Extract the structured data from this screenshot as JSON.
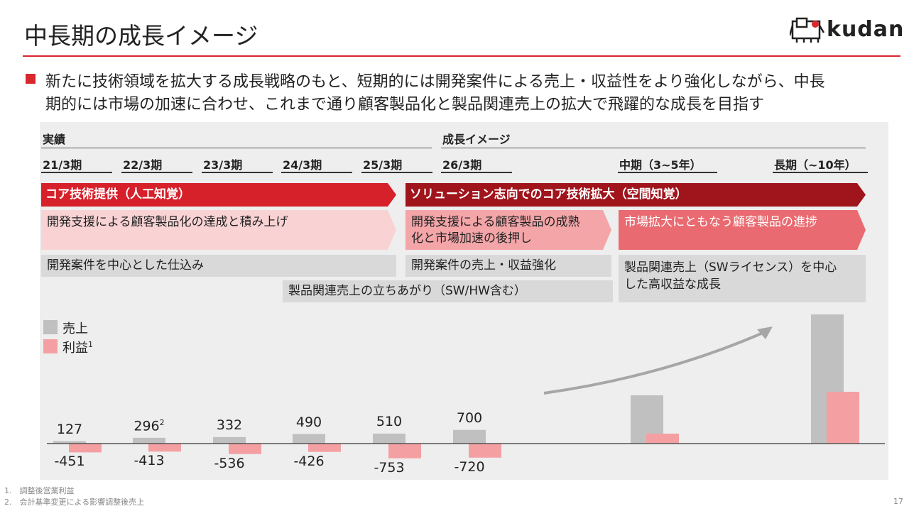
{
  "header": {
    "title": "中長期の成長イメージ",
    "logo_text": "kudan"
  },
  "bullet": {
    "line1": "新たに技術領域を拡大する成長戦略のもと、短期的には開発案件による売上・収益性をより強化しながら、中長",
    "line2": "期的には市場の加速に合わせ、これまで通り顧客製品化と製品関連売上の拡大で飛躍的な成長を目指す"
  },
  "timeline": {
    "actual_label": "実績",
    "growth_label": "成長イメージ",
    "periods": [
      "21/3期",
      "22/3期",
      "23/3期",
      "24/3期",
      "25/3期",
      "26/3期",
      "中期（3~5年）",
      "長期（~10年）"
    ]
  },
  "bands": {
    "core_tech": "コア技術提供（人工知覚）",
    "solution": "ソリューション志向でのコア技術拡大（空間知覚）"
  },
  "pink_boxes": {
    "box1": "開発支援による顧客製品化の達成と積み上げ",
    "box2_line1": "開発支援による顧客製品の成熟",
    "box2_line2": "化と市場加速の後押し",
    "box3": "市場拡大にともなう顧客製品の進捗"
  },
  "grey_boxes": {
    "box1": "開発案件を中心とした仕込み",
    "box2": "開発案件の売上・収益強化",
    "box3": "製品関連売上の立ちあがり（SW/HW含む）",
    "box4_line1": "製品関連売上（SWライセンス）を中心",
    "box4_line2": "した高収益な成長"
  },
  "legend": {
    "sales": "売上",
    "profit": "利益",
    "profit_sup": "1"
  },
  "chart_data": {
    "type": "bar",
    "categories": [
      "21/3期",
      "22/3期",
      "23/3期",
      "24/3期",
      "25/3期",
      "26/3期",
      "中期（3~5年）",
      "長期（~10年）"
    ],
    "series": [
      {
        "name": "売上",
        "values": [
          127,
          296,
          332,
          490,
          510,
          700,
          null,
          null
        ],
        "labels": [
          "127",
          "296",
          "332",
          "490",
          "510",
          "700",
          "",
          ""
        ]
      },
      {
        "name": "利益",
        "values": [
          -451,
          -413,
          -536,
          -426,
          -753,
          -720,
          null,
          null
        ],
        "labels": [
          "-451",
          "-413",
          "-536",
          "-426",
          "-753",
          "-720",
          "",
          ""
        ]
      }
    ],
    "sales_label_sup": [
      "",
      "2",
      "",
      "",
      "",
      "",
      "",
      ""
    ],
    "colors": {
      "sales": "#c0c0c0",
      "profit": "#f4a0a3",
      "arrow": "#a6a6a6"
    }
  },
  "footnotes": {
    "note1": "1.　調整後営業利益",
    "note2": "2.　会計基準変更による影響調整後売上"
  },
  "page_number": "17"
}
